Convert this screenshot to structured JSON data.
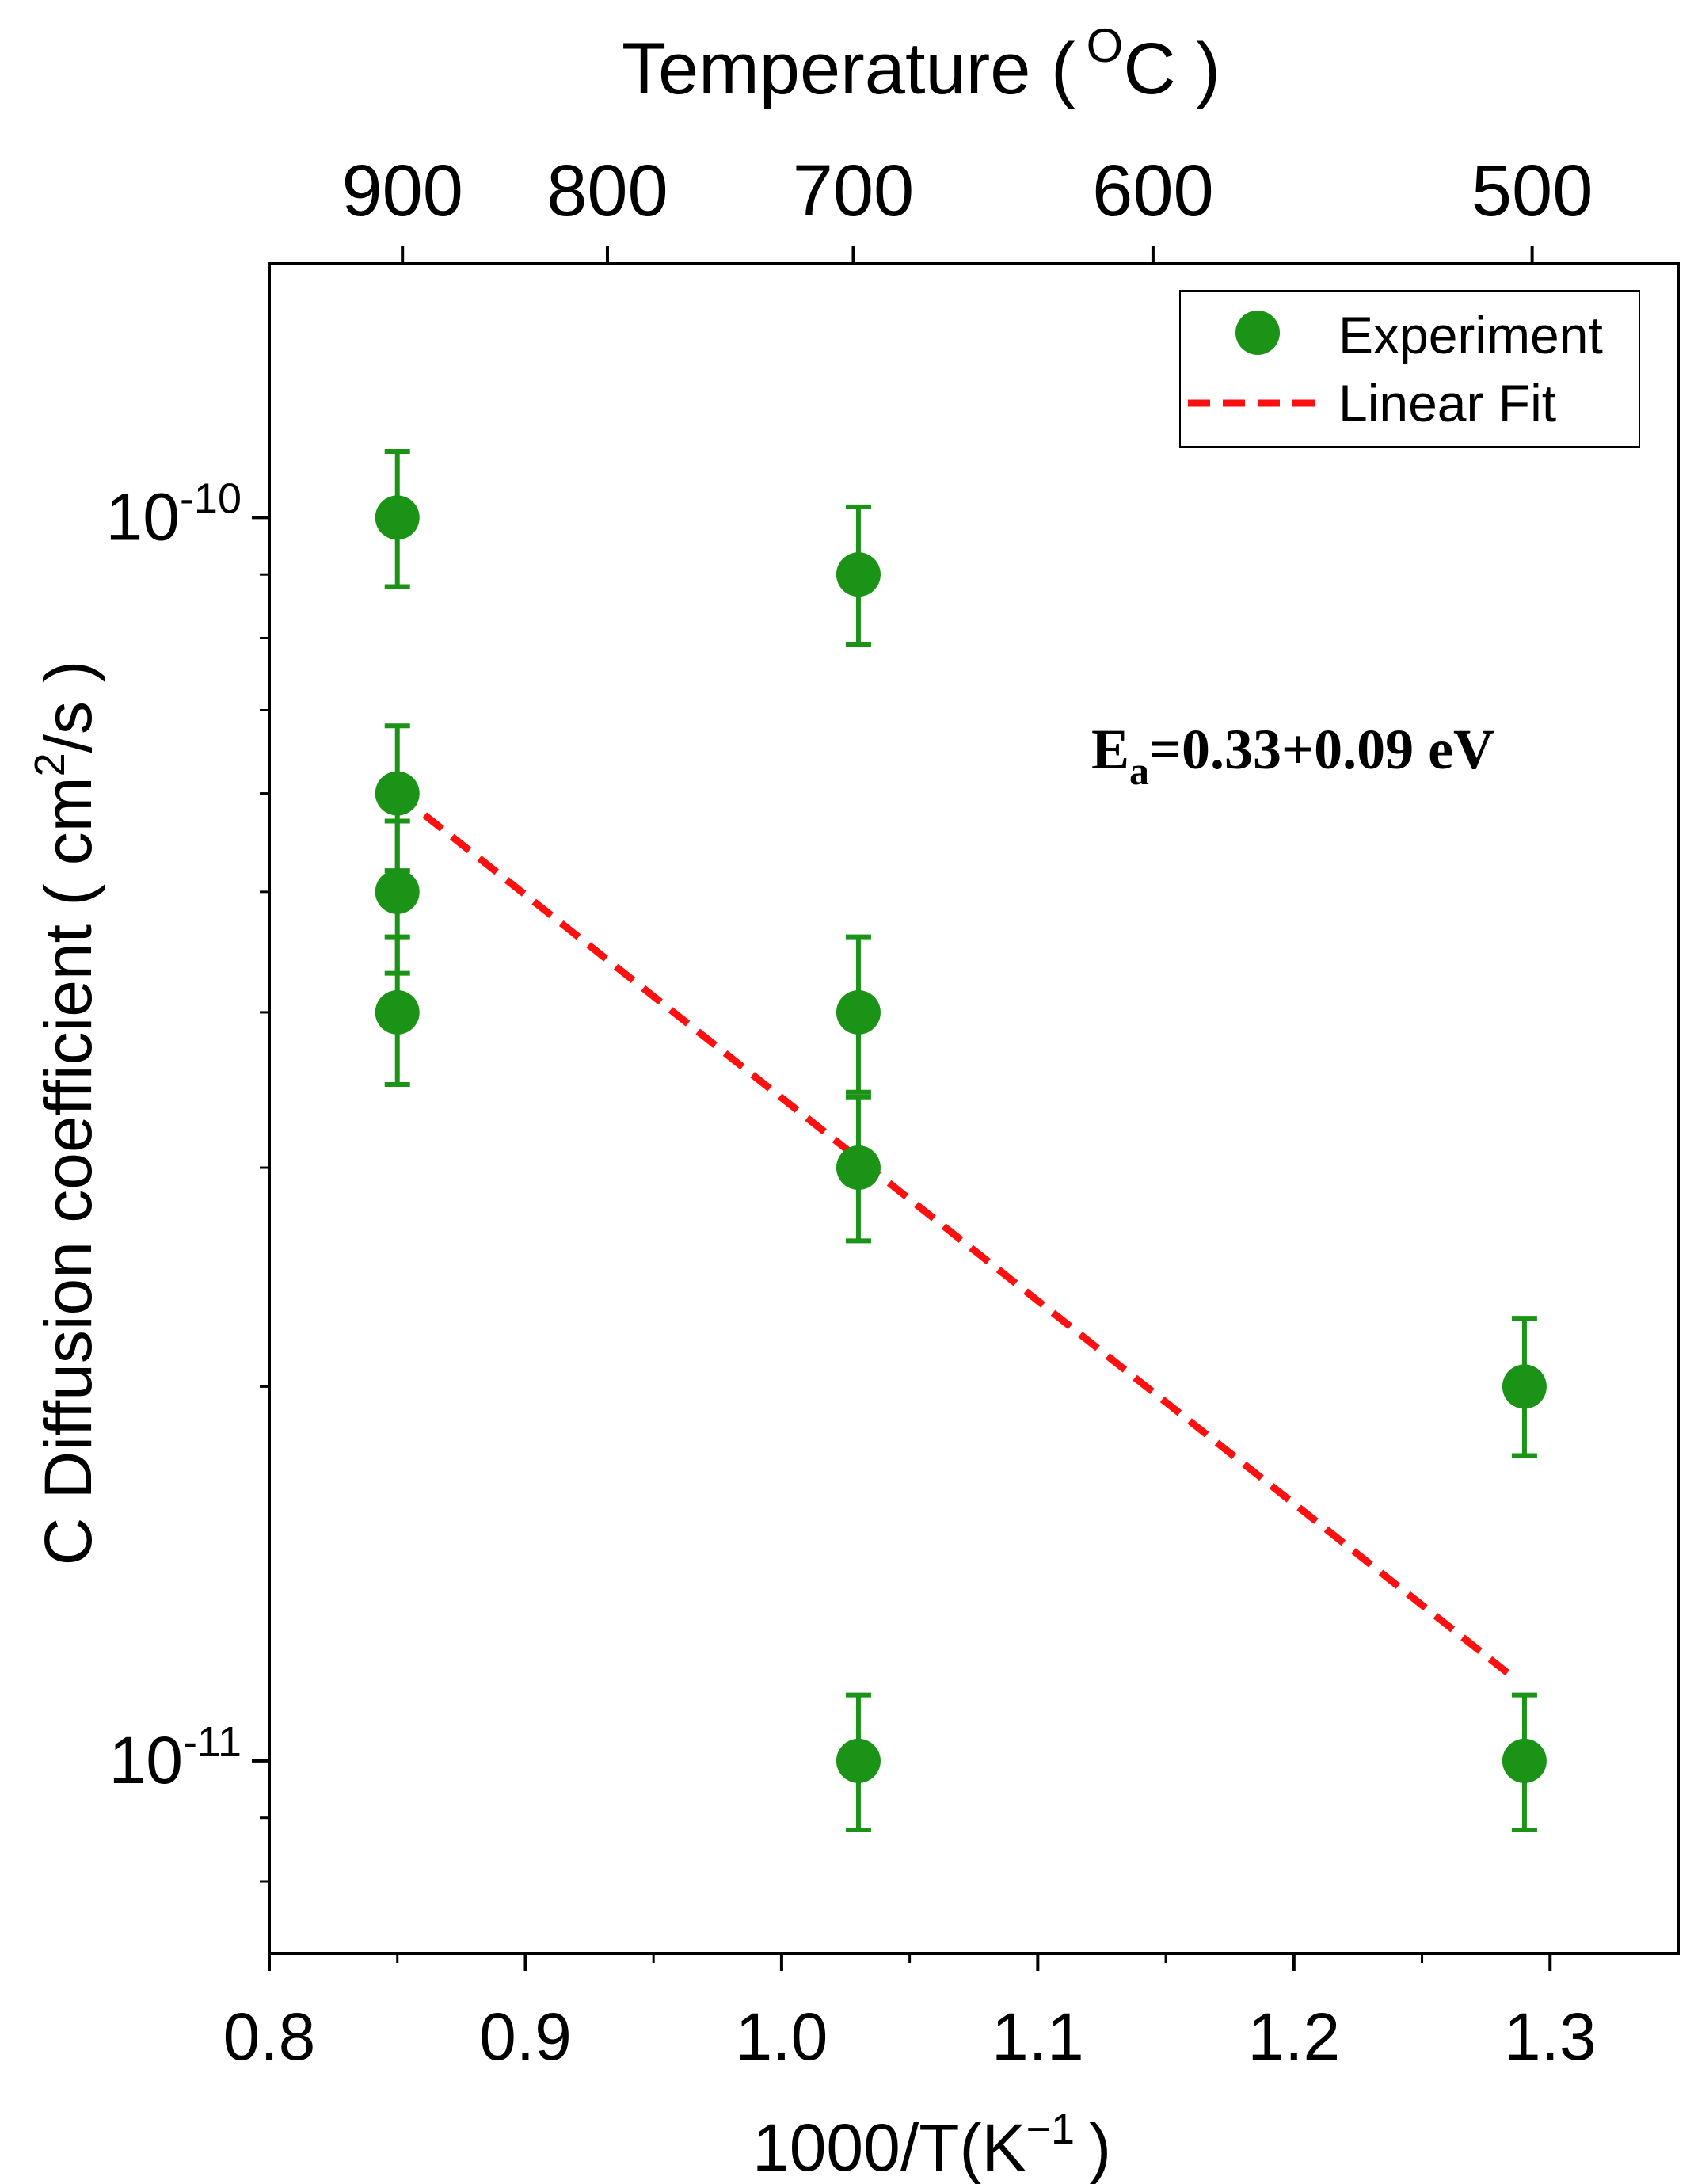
{
  "chart_data": {
    "type": "scatter",
    "title": "",
    "xlabel": "1000/T(K",
    "xlabel_sup": "−1",
    "xlabel_end": ")",
    "ylabel": "C Diffusion coefficient ( cm",
    "ylabel_sup": "2",
    "ylabel_end": "/s )",
    "top_axis_label": "Temperature (",
    "top_axis_label_sup": "O",
    "top_axis_label_end": "C )",
    "xlim": [
      0.8,
      1.35
    ],
    "ylim_log": [
      7e-12,
      1.6e-10
    ],
    "y_scale": "log",
    "x_ticks": [
      0.8,
      0.9,
      1.0,
      1.1,
      1.2,
      1.3
    ],
    "x_tick_labels": [
      "0.8",
      "0.9",
      "1.0",
      "1.1",
      "1.2",
      "1.3"
    ],
    "y_major_ticks": [
      {
        "value": 1e-10,
        "base": "10",
        "exp": "-10"
      },
      {
        "value": 1e-11,
        "base": "10",
        "exp": "-11"
      }
    ],
    "y_minor_ticks": [
      8e-12,
      9e-12,
      2e-11,
      3e-11,
      4e-11,
      5e-11,
      6e-11,
      7e-11,
      8e-11,
      9e-11
    ],
    "top_ticks": [
      {
        "celsius": "900",
        "x": 0.852
      },
      {
        "celsius": "800",
        "x": 0.932
      },
      {
        "celsius": "700",
        "x": 1.028
      },
      {
        "celsius": "600",
        "x": 1.145
      },
      {
        "celsius": "500",
        "x": 1.293
      }
    ],
    "series": [
      {
        "name": "Experiment",
        "type": "scatter",
        "color": "#1a9317",
        "points": [
          {
            "x": 0.85,
            "y": 1e-10,
            "err_lo": 8.8e-11,
            "err_hi": 1.13e-10
          },
          {
            "x": 0.85,
            "y": 6e-11,
            "err_lo": 5.2e-11,
            "err_hi": 6.8e-11
          },
          {
            "x": 0.85,
            "y": 5e-11,
            "err_lo": 4.3e-11,
            "err_hi": 5.7e-11
          },
          {
            "x": 0.85,
            "y": 4e-11,
            "err_lo": 3.5e-11,
            "err_hi": 4.6e-11
          },
          {
            "x": 1.03,
            "y": 9e-11,
            "err_lo": 7.9e-11,
            "err_hi": 1.02e-10
          },
          {
            "x": 1.03,
            "y": 4e-11,
            "err_lo": 3.45e-11,
            "err_hi": 4.6e-11
          },
          {
            "x": 1.03,
            "y": 3e-11,
            "err_lo": 2.62e-11,
            "err_hi": 3.42e-11
          },
          {
            "x": 1.03,
            "y": 1e-11,
            "err_lo": 8.8e-12,
            "err_hi": 1.13e-11
          },
          {
            "x": 1.29,
            "y": 2e-11,
            "err_lo": 1.76e-11,
            "err_hi": 2.27e-11
          },
          {
            "x": 1.29,
            "y": 1e-11,
            "err_lo": 8.8e-12,
            "err_hi": 1.13e-11
          }
        ]
      },
      {
        "name": "Linear Fit",
        "type": "line",
        "style": "dashed",
        "color": "#ff1010",
        "x": [
          0.85,
          1.285
        ],
        "y": [
          6e-11,
          1.17e-11
        ]
      }
    ],
    "legend": {
      "position": "top-right",
      "entries": [
        "Experiment",
        "Linear Fit"
      ]
    },
    "annotation": {
      "base": "E",
      "sub": "a",
      "rest": "=0.33+0.09 eV"
    }
  }
}
